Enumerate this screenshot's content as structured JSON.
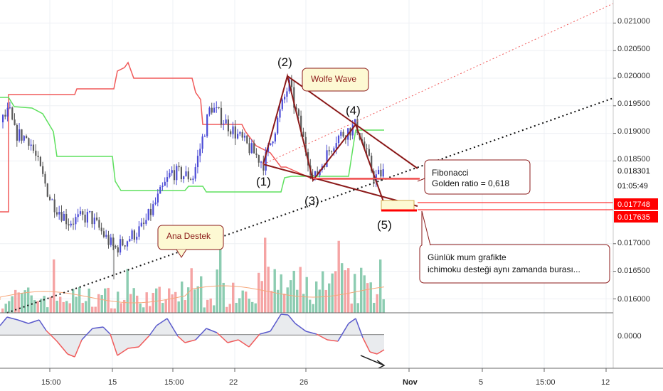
{
  "chart_data": {
    "type": "line",
    "title": "",
    "y_axis": {
      "ticks": [
        "0.021000",
        "0.020500",
        "0.020000",
        "0.019500",
        "0.019000",
        "0.018500",
        "0.017000",
        "0.016500",
        "0.016000"
      ],
      "tick_values": [
        0.021,
        0.0205,
        0.02,
        0.0195,
        0.019,
        0.0185,
        0.017,
        0.0165,
        0.016
      ],
      "current_price": "0.018301",
      "countdown": "01:05:49",
      "badges": [
        {
          "label": "0.017748",
          "value": 0.017748,
          "color": "#ff0000"
        },
        {
          "label": "0.017635",
          "value": 0.017635,
          "color": "#ff0000"
        }
      ]
    },
    "oscillator_axis": {
      "ticks": [
        "0.0000"
      ]
    },
    "x_axis": {
      "ticks": [
        "15:00",
        "15",
        "15:00",
        "22",
        "26",
        "Nov",
        "5",
        "15:00",
        "12"
      ]
    },
    "price_series_approx": [
      {
        "x": 0,
        "close": 0.0192
      },
      {
        "x": 12,
        "close": 0.0194
      },
      {
        "x": 20,
        "close": 0.019
      },
      {
        "x": 40,
        "close": 0.0189
      },
      {
        "x": 70,
        "close": 0.0178
      },
      {
        "x": 95,
        "close": 0.0174
      },
      {
        "x": 125,
        "close": 0.0175
      },
      {
        "x": 160,
        "close": 0.0169
      },
      {
        "x": 200,
        "close": 0.0173
      },
      {
        "x": 240,
        "close": 0.0183
      },
      {
        "x": 270,
        "close": 0.0182
      },
      {
        "x": 295,
        "close": 0.0195
      },
      {
        "x": 330,
        "close": 0.019
      },
      {
        "x": 370,
        "close": 0.01845
      },
      {
        "x": 405,
        "close": 0.0199
      },
      {
        "x": 440,
        "close": 0.01815
      },
      {
        "x": 470,
        "close": 0.0189
      },
      {
        "x": 500,
        "close": 0.01915
      },
      {
        "x": 525,
        "close": 0.0182
      },
      {
        "x": 540,
        "close": 0.0183
      }
    ],
    "wave_points": [
      {
        "label": "(1)",
        "value": 0.01844
      },
      {
        "label": "(2)",
        "value": 0.02004
      },
      {
        "label": "(3)",
        "value": 0.01815
      },
      {
        "label": "(4)",
        "value": 0.01916
      },
      {
        "label": "(5)",
        "value": 0.01773
      }
    ],
    "annotations": [
      {
        "id": "wolfe",
        "text": [
          "Wolfe Wave"
        ]
      },
      {
        "id": "fib",
        "text": [
          "Fibonacci",
          "Golden ratio = 0,618"
        ]
      },
      {
        "id": "destek",
        "text": [
          "Ana Destek"
        ]
      },
      {
        "id": "gunluk",
        "text": [
          "Günlük mum grafikte",
          "ichimoku desteği aynı zamanda burası..."
        ]
      }
    ],
    "colors": {
      "up": "#4b4bd6",
      "down": "#5a5a5a",
      "red_line": "#f05a5a",
      "green_line": "#5ee05e",
      "wave": "#8b1a1a",
      "osc": "#5a5acc",
      "osc_low": "#f05a5a",
      "vol_up": "#7fc7a8",
      "vol_down": "#f49a9a",
      "note_fill": "#fdf9d3",
      "note_border": "#8b1a1a"
    }
  }
}
